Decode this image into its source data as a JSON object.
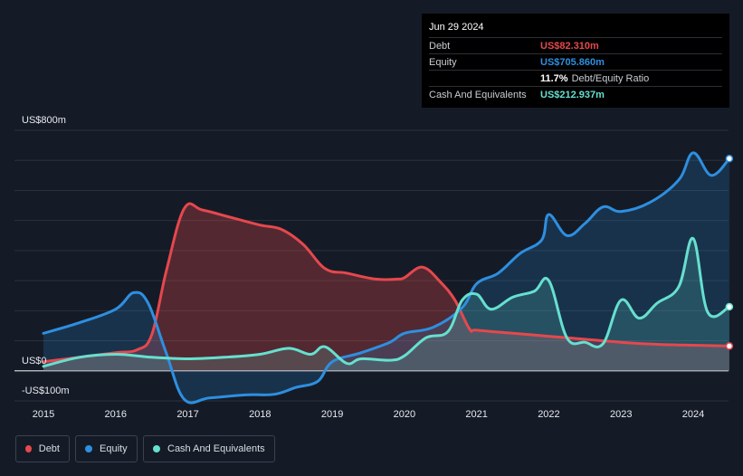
{
  "tooltip": {
    "date": "Jun 29 2024",
    "rows": [
      {
        "label": "Debt",
        "value": "US$82.310m",
        "color": "#e5484d"
      },
      {
        "label": "Equity",
        "value": "US$705.860m",
        "color": "#2e8fe0"
      },
      {
        "label": "",
        "value": "11.7%",
        "suffix": "Debt/Equity Ratio",
        "color": "#ffffff"
      },
      {
        "label": "Cash And Equivalents",
        "value": "US$212.937m",
        "color": "#66e0cf"
      }
    ]
  },
  "legend": {
    "items": [
      {
        "label": "Debt",
        "color": "#e5484d"
      },
      {
        "label": "Equity",
        "color": "#2e8fe0"
      },
      {
        "label": "Cash And Equivalents",
        "color": "#66e0cf"
      }
    ]
  },
  "chart_data": {
    "type": "area",
    "x_unit": "year",
    "ylim": [
      -100,
      800
    ],
    "y_tick_labels": [
      {
        "value": 800,
        "label": "US$800m"
      },
      {
        "value": 0,
        "label": "US$0"
      },
      {
        "value": -100,
        "label": "-US$100m"
      }
    ],
    "x_ticks": [
      2015,
      2016,
      2017,
      2018,
      2019,
      2020,
      2021,
      2022,
      2023,
      2024
    ],
    "grid": true,
    "legend_position": "bottom-left",
    "series": [
      {
        "name": "Debt",
        "color": "#e5484d",
        "points": [
          [
            2015.0,
            30
          ],
          [
            2015.5,
            45
          ],
          [
            2016.0,
            60
          ],
          [
            2016.3,
            70
          ],
          [
            2016.5,
            120
          ],
          [
            2016.7,
            330
          ],
          [
            2016.95,
            540
          ],
          [
            2017.2,
            535
          ],
          [
            2017.6,
            510
          ],
          [
            2018.0,
            485
          ],
          [
            2018.3,
            470
          ],
          [
            2018.6,
            420
          ],
          [
            2018.9,
            340
          ],
          [
            2019.2,
            325
          ],
          [
            2019.6,
            305
          ],
          [
            2019.9,
            305
          ],
          [
            2020.0,
            310
          ],
          [
            2020.25,
            345
          ],
          [
            2020.5,
            295
          ],
          [
            2020.7,
            235
          ],
          [
            2020.9,
            140
          ],
          [
            2021.0,
            135
          ],
          [
            2021.5,
            125
          ],
          [
            2022.0,
            115
          ],
          [
            2022.5,
            105
          ],
          [
            2023.0,
            95
          ],
          [
            2023.5,
            88
          ],
          [
            2024.0,
            85
          ],
          [
            2024.5,
            82.3
          ]
        ]
      },
      {
        "name": "Equity",
        "color": "#2e8fe0",
        "points": [
          [
            2015.0,
            125
          ],
          [
            2015.5,
            160
          ],
          [
            2016.0,
            205
          ],
          [
            2016.25,
            260
          ],
          [
            2016.45,
            225
          ],
          [
            2016.7,
            60
          ],
          [
            2016.95,
            -95
          ],
          [
            2017.3,
            -90
          ],
          [
            2017.8,
            -80
          ],
          [
            2018.2,
            -78
          ],
          [
            2018.5,
            -55
          ],
          [
            2018.8,
            -35
          ],
          [
            2019.0,
            30
          ],
          [
            2019.4,
            60
          ],
          [
            2019.8,
            95
          ],
          [
            2020.0,
            125
          ],
          [
            2020.4,
            145
          ],
          [
            2020.8,
            210
          ],
          [
            2021.0,
            290
          ],
          [
            2021.3,
            325
          ],
          [
            2021.6,
            390
          ],
          [
            2021.9,
            435
          ],
          [
            2022.0,
            520
          ],
          [
            2022.25,
            450
          ],
          [
            2022.5,
            490
          ],
          [
            2022.75,
            545
          ],
          [
            2023.0,
            530
          ],
          [
            2023.4,
            560
          ],
          [
            2023.8,
            635
          ],
          [
            2024.0,
            725
          ],
          [
            2024.25,
            650
          ],
          [
            2024.5,
            705.9
          ]
        ]
      },
      {
        "name": "Cash And Equivalents",
        "color": "#66e0cf",
        "points": [
          [
            2015.0,
            15
          ],
          [
            2015.5,
            45
          ],
          [
            2016.0,
            55
          ],
          [
            2016.5,
            45
          ],
          [
            2017.0,
            40
          ],
          [
            2017.5,
            45
          ],
          [
            2018.0,
            55
          ],
          [
            2018.4,
            75
          ],
          [
            2018.7,
            55
          ],
          [
            2018.9,
            80
          ],
          [
            2019.2,
            25
          ],
          [
            2019.4,
            40
          ],
          [
            2019.8,
            35
          ],
          [
            2020.0,
            50
          ],
          [
            2020.3,
            110
          ],
          [
            2020.6,
            130
          ],
          [
            2020.8,
            235
          ],
          [
            2021.0,
            255
          ],
          [
            2021.2,
            205
          ],
          [
            2021.5,
            245
          ],
          [
            2021.8,
            265
          ],
          [
            2022.0,
            300
          ],
          [
            2022.25,
            110
          ],
          [
            2022.5,
            95
          ],
          [
            2022.75,
            90
          ],
          [
            2023.0,
            235
          ],
          [
            2023.25,
            175
          ],
          [
            2023.5,
            225
          ],
          [
            2023.8,
            280
          ],
          [
            2024.0,
            440
          ],
          [
            2024.2,
            195
          ],
          [
            2024.5,
            212.9
          ]
        ]
      }
    ]
  }
}
